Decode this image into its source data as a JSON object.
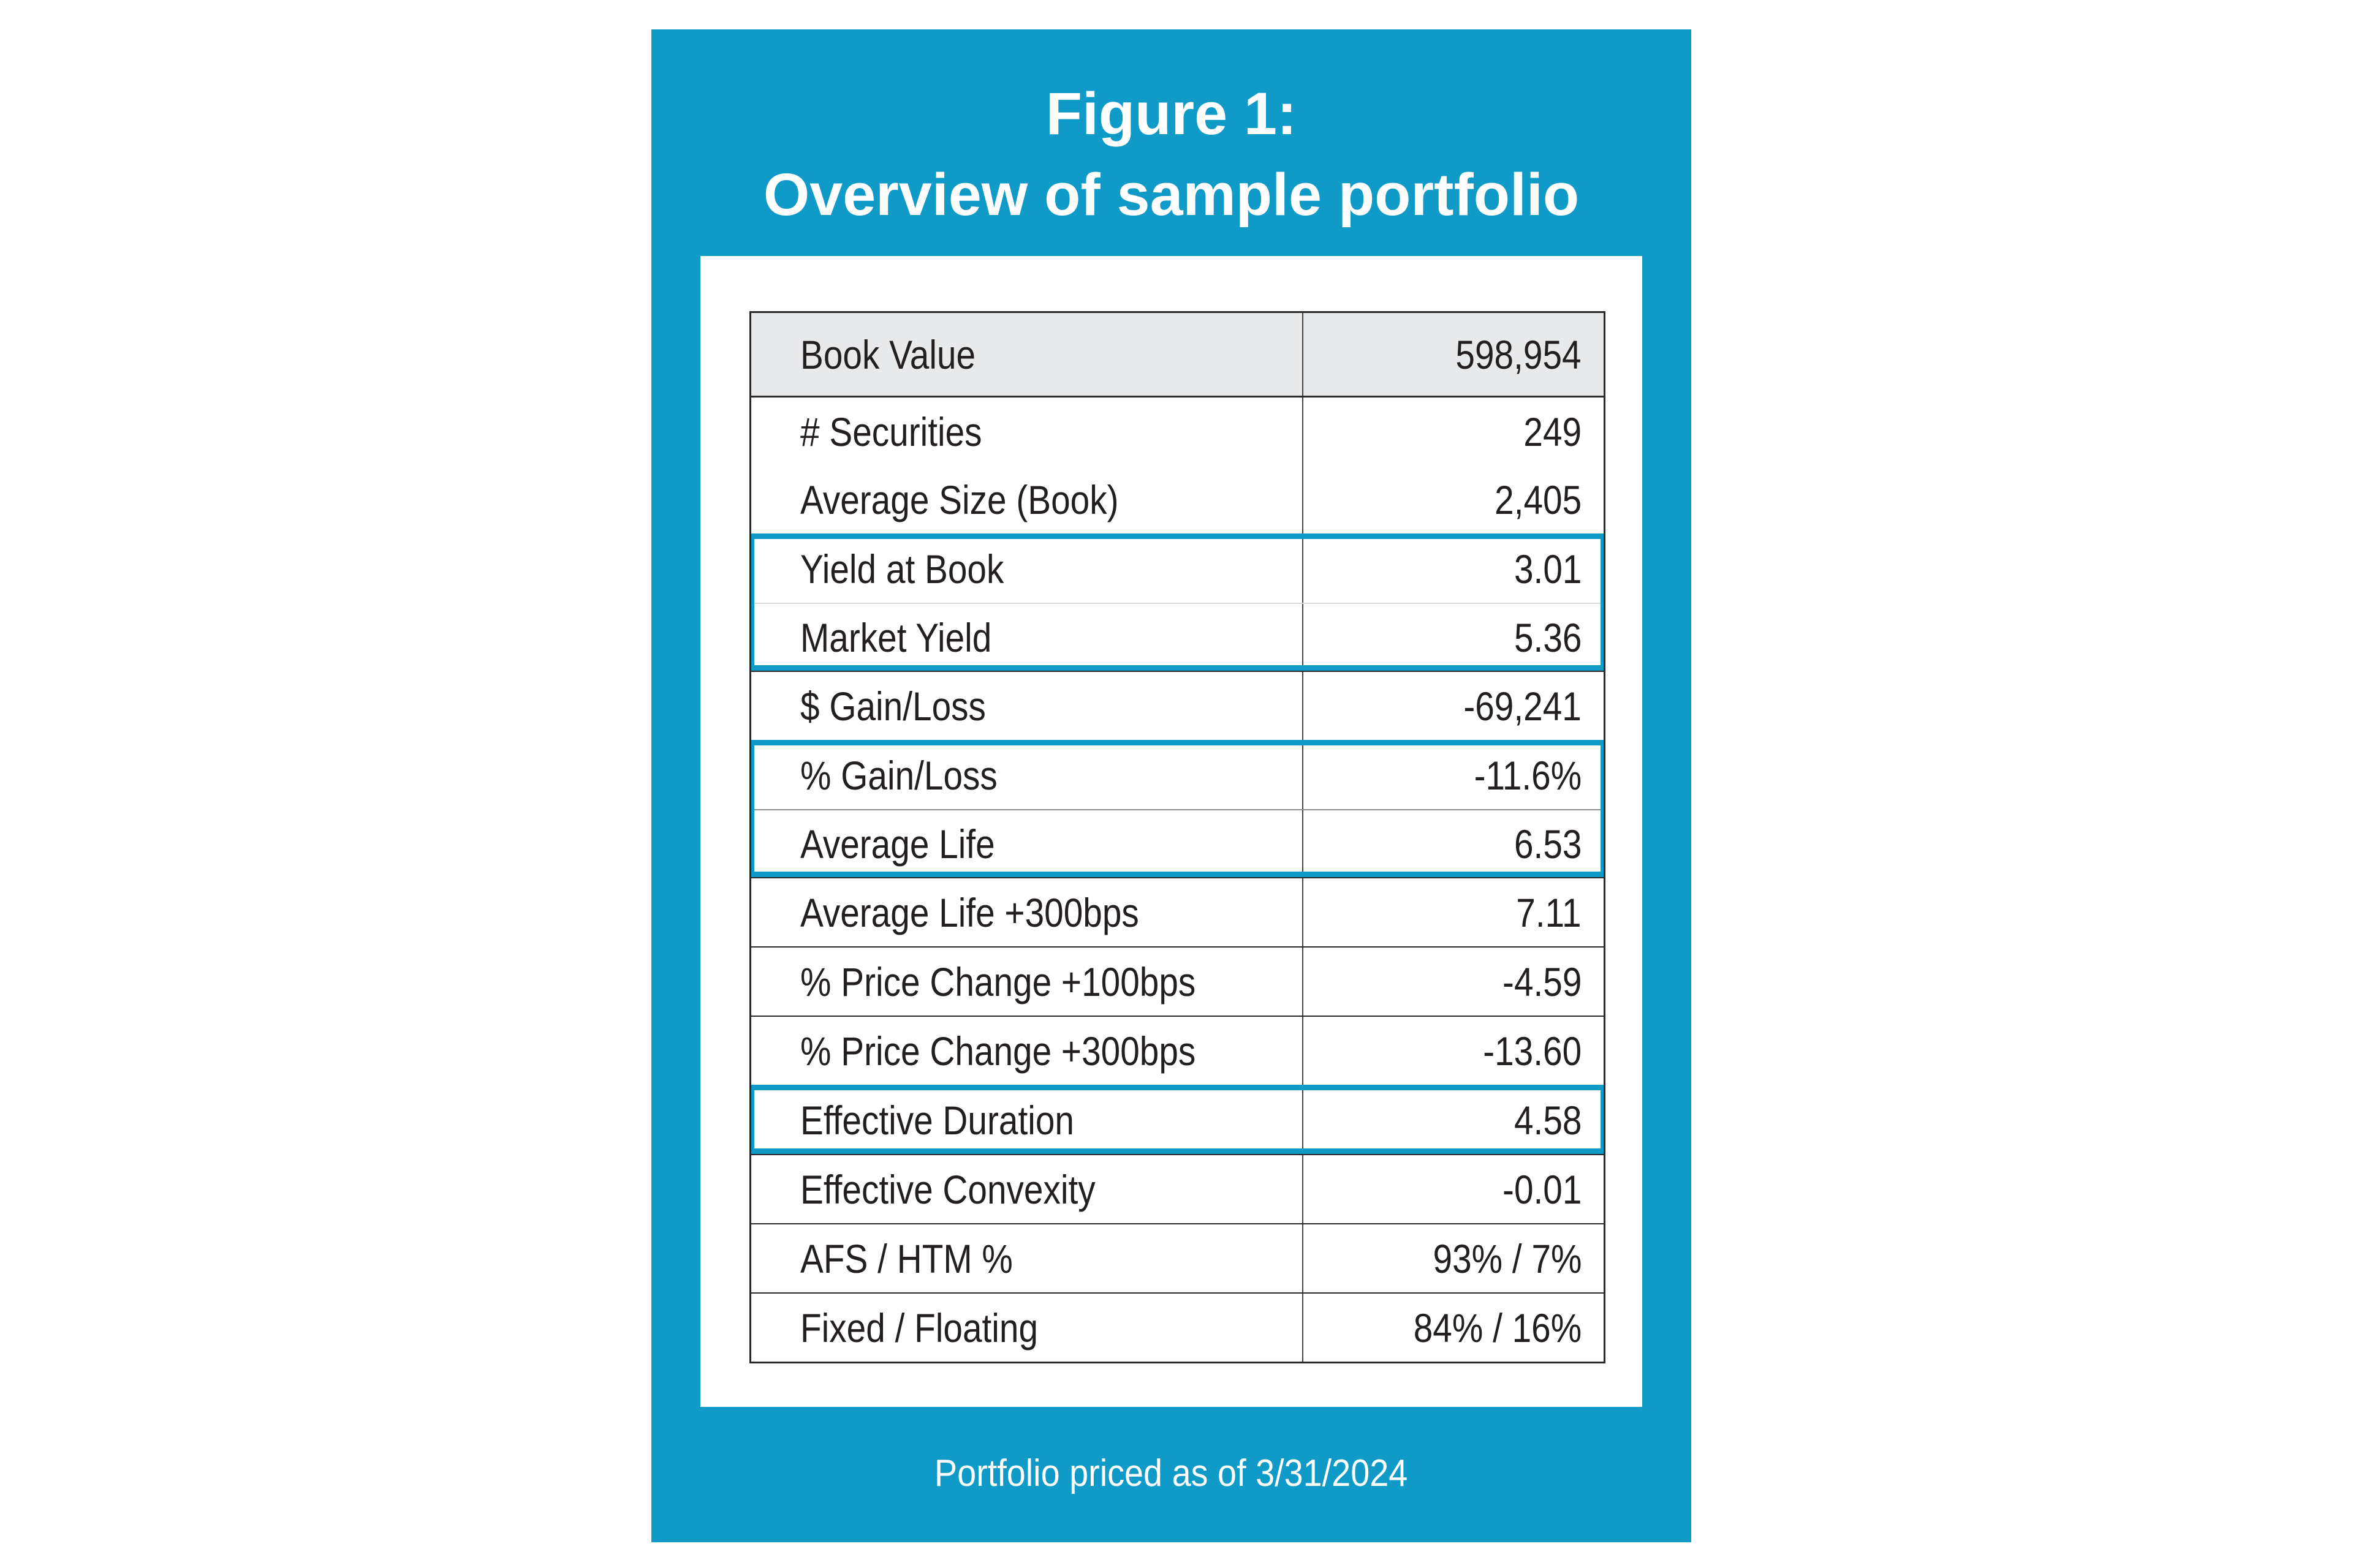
{
  "figure": {
    "title_line1": "Figure 1:",
    "title_line2": "Overview of sample portfolio",
    "footnote": "Portfolio priced as of 3/31/2024"
  },
  "colors": {
    "accent_teal": "#0F9AC7",
    "header_row_bg": "#E8E9EA",
    "text_ink": "#231F20",
    "grid_line": "#2B292A"
  },
  "table": {
    "header": {
      "label": "Book Value",
      "value": "598,954"
    },
    "groups": [
      {
        "highlight": false,
        "divider": "none",
        "rows": [
          {
            "label": "# Securities",
            "value": "249"
          },
          {
            "label": "Average Size (Book)",
            "value": "2,405"
          }
        ]
      },
      {
        "highlight": true,
        "divider": "light",
        "rows": [
          {
            "label": "Yield at Book",
            "value": "3.01"
          },
          {
            "label": "Market Yield",
            "value": "5.36"
          }
        ]
      },
      {
        "highlight": false,
        "rows": [
          {
            "label": "$ Gain/Loss",
            "value": "-69,241"
          }
        ]
      },
      {
        "highlight": true,
        "divider": "medium",
        "rows": [
          {
            "label": "% Gain/Loss",
            "value": "-11.6%"
          },
          {
            "label": "Average Life",
            "value": "6.53"
          }
        ]
      },
      {
        "highlight": false,
        "rows": [
          {
            "label": "Average Life +300bps",
            "value": "7.11"
          }
        ]
      },
      {
        "highlight": false,
        "rows": [
          {
            "label": "% Price Change +100bps",
            "value": "-4.59"
          }
        ]
      },
      {
        "highlight": false,
        "rows": [
          {
            "label": "% Price Change +300bps",
            "value": "-13.60"
          }
        ]
      },
      {
        "highlight": true,
        "rows": [
          {
            "label": "Effective Duration",
            "value": "4.58"
          }
        ]
      },
      {
        "highlight": false,
        "rows": [
          {
            "label": "Effective Convexity",
            "value": "-0.01"
          }
        ]
      },
      {
        "highlight": false,
        "rows": [
          {
            "label": "AFS / HTM %",
            "value": "93% / 7%"
          }
        ]
      },
      {
        "highlight": false,
        "rows": [
          {
            "label": "Fixed / Floating",
            "value": "84% / 16%"
          }
        ]
      }
    ]
  }
}
